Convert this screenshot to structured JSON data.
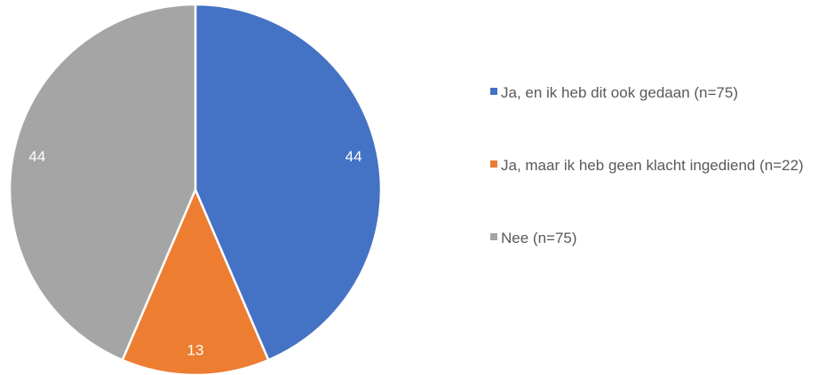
{
  "chart_data": {
    "type": "pie",
    "categories": [
      "Ja, en ik heb dit ook gedaan (n=75)",
      "Ja, maar ik heb geen klacht ingediend (n=22)",
      "Nee (n=75)"
    ],
    "values": [
      44,
      13,
      44
    ],
    "colors": [
      "#4472c4",
      "#ed7d31",
      "#a5a5a5"
    ],
    "legend": "right"
  }
}
